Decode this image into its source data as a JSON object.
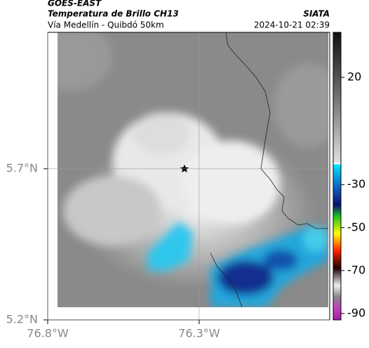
{
  "header": {
    "source": "GOES-EAST",
    "product": "Temperatura de Brillo CH13",
    "agency": "SIATA",
    "route": "Vía Medellín - Quibdó 50km",
    "timestamp": "2024-10-21 02:39"
  },
  "map": {
    "latlim": [
      5.2,
      6.151
    ],
    "lonlim": [
      -76.8,
      -75.869
    ],
    "latticks": [
      {
        "value": 5.2,
        "label": "5.2°N"
      },
      {
        "value": 5.7,
        "label": "5.7°N"
      }
    ],
    "lonticks": [
      {
        "value": -76.8,
        "label": "76.8°W"
      },
      {
        "value": -76.3,
        "label": "76.3°W"
      }
    ]
  },
  "colorbar": {
    "lim": [
      -93,
      41
    ],
    "ticks": [
      20,
      -30,
      -50,
      -70,
      -90
    ]
  }
}
